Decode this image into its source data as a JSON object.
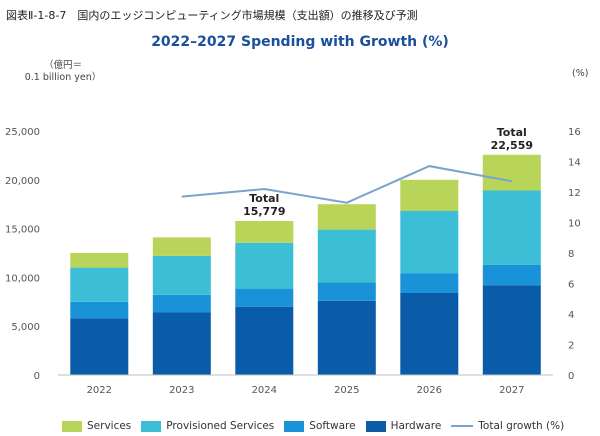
{
  "caption": "図表Ⅱ-1-8-7　国内のエッジコンピューティング市場規模（支出額）の推移及び予測",
  "chart_data": {
    "type": "bar",
    "title": "2022–2027 Spending with Growth (%)",
    "y_unit_label": [
      "（億円＝",
      "0.1 billion yen）"
    ],
    "y2_unit_label": "(%)",
    "categories": [
      "2022",
      "2023",
      "2024",
      "2025",
      "2026",
      "2027"
    ],
    "ylim": [
      0,
      25000
    ],
    "y_ticks": [
      "0",
      "5,000",
      "10,000",
      "15,000",
      "20,000",
      "25,000"
    ],
    "y2lim": [
      0,
      16
    ],
    "y2_ticks": [
      "0",
      "2",
      "4",
      "6",
      "8",
      "10",
      "12",
      "14",
      "16"
    ],
    "stacked": true,
    "series": [
      {
        "name": "Hardware",
        "color": "#0a5ca8",
        "values": [
          5800,
          6400,
          7000,
          7600,
          8400,
          9200
        ]
      },
      {
        "name": "Software",
        "color": "#1a92d8",
        "values": [
          1700,
          1800,
          1850,
          1900,
          2000,
          2100
        ]
      },
      {
        "name": "Provisioned Services",
        "color": "#3cbfd6",
        "values": [
          3500,
          4000,
          4700,
          5400,
          6400,
          7600
        ]
      },
      {
        "name": "Services",
        "color": "#b8d55a",
        "values": [
          1500,
          1900,
          2229,
          2600,
          3200,
          3659
        ]
      }
    ],
    "line_series": {
      "name": "Total growth (%)",
      "color": "#7aa3cc",
      "axis": "right",
      "points": [
        {
          "category": "2023",
          "value": 11.7
        },
        {
          "category": "2024",
          "value": 12.2
        },
        {
          "category": "2025",
          "value": 11.3
        },
        {
          "category": "2026",
          "value": 13.7
        },
        {
          "category": "2027",
          "value": 12.7
        }
      ]
    },
    "annotations": [
      {
        "category": "2024",
        "label": "Total",
        "value_text": "15,779"
      },
      {
        "category": "2027",
        "label": "Total",
        "value_text": "22,559"
      }
    ],
    "grid": false,
    "legend_position": "bottom"
  }
}
